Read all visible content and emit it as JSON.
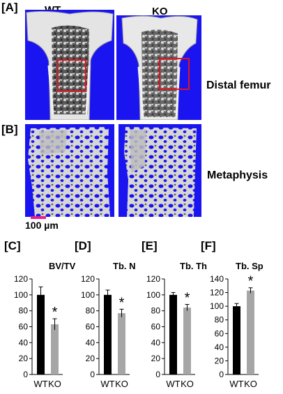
{
  "panels": {
    "a_label": "[A]",
    "b_label": "[B]",
    "c_label": "[C]",
    "d_label": "[D]",
    "e_label": "[E]",
    "f_label": "[F]"
  },
  "columns": {
    "wt": "WT",
    "ko": "KO"
  },
  "row_labels": {
    "distal_femur": "Distal femur",
    "metaphysis": "Metaphysis"
  },
  "scale_bar": {
    "label": "100 µm",
    "color": "#e8208c"
  },
  "colors": {
    "background_blue": "#1a14f0",
    "roi_red": "#e0141e",
    "wt_bar": "#000000",
    "ko_bar": "#a6a6a6"
  },
  "chart_data": [
    {
      "type": "bar",
      "title": "BV/TV",
      "categories": [
        "WT",
        "KO"
      ],
      "values": [
        100,
        63
      ],
      "errors": [
        10,
        7
      ],
      "significance": [
        "",
        "*"
      ],
      "ylim": [
        0,
        120
      ],
      "yticks": [
        "0",
        "20",
        "40",
        "60",
        "80",
        "100",
        "120"
      ]
    },
    {
      "type": "bar",
      "title": "Tb. N",
      "categories": [
        "WT",
        "KO"
      ],
      "values": [
        100,
        77
      ],
      "errors": [
        6,
        5
      ],
      "significance": [
        "",
        "*"
      ],
      "ylim": [
        0,
        120
      ],
      "yticks": [
        "0",
        "20",
        "40",
        "60",
        "80",
        "100",
        "120"
      ]
    },
    {
      "type": "bar",
      "title": "Tb. Th",
      "categories": [
        "WT",
        "KO"
      ],
      "values": [
        100,
        84
      ],
      "errors": [
        3,
        4
      ],
      "significance": [
        "",
        "*"
      ],
      "ylim": [
        0,
        120
      ],
      "yticks": [
        "0",
        "20",
        "40",
        "60",
        "80",
        "100",
        "120"
      ]
    },
    {
      "type": "bar",
      "title": "Tb. Sp",
      "categories": [
        "WT",
        "KO"
      ],
      "values": [
        100,
        123
      ],
      "errors": [
        4,
        4
      ],
      "significance": [
        "",
        "*"
      ],
      "ylim": [
        0,
        140
      ],
      "yticks": [
        "0",
        "20",
        "40",
        "60",
        "80",
        "100",
        "120",
        "140"
      ]
    }
  ]
}
